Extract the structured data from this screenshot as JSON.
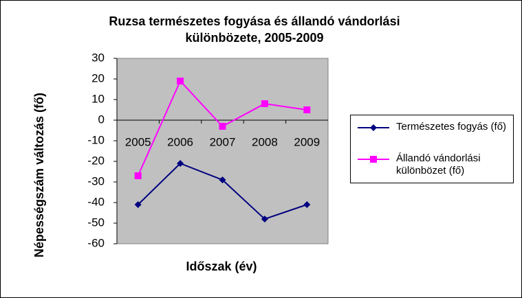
{
  "chart_data": {
    "type": "line",
    "title": [
      "Ruzsa természetes fogyása és állandó vándorlási",
      "különbözete, 2005-2009"
    ],
    "x_label": "Időszak (év)",
    "y_label": "Népességszám változás (fő)",
    "categories": [
      "2005",
      "2006",
      "2007",
      "2008",
      "2009"
    ],
    "series": [
      {
        "name": "Természetes fogyás (fő)",
        "color": "#000080",
        "marker": "diamond",
        "values": [
          -41,
          -21,
          -29,
          -48,
          -41
        ]
      },
      {
        "name": "Állandó vándorlási különbözet  (fő)",
        "color": "#ff00ff",
        "marker": "square",
        "values": [
          -27,
          19,
          -3,
          8,
          5
        ]
      }
    ],
    "ylim": [
      -60,
      30
    ],
    "yticks": [
      -60,
      -50,
      -40,
      -30,
      -20,
      -10,
      0,
      10,
      20,
      30
    ],
    "plot_background": "#c0c0c0",
    "grid": false,
    "legend": "right"
  }
}
